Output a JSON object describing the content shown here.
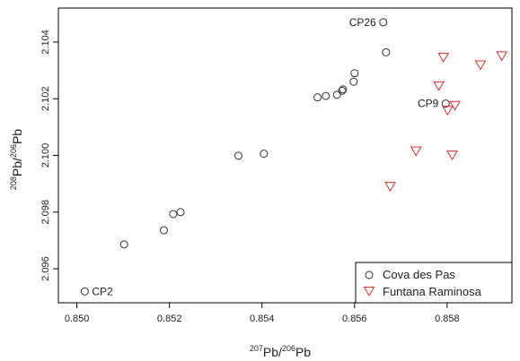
{
  "chart_data": {
    "type": "scatter",
    "xlabel": {
      "sup1": "207",
      "base1": "Pb/",
      "sup2": "206",
      "base2": "Pb"
    },
    "ylabel": {
      "sup1": "208",
      "base1": "Pb/",
      "sup2": "206",
      "base2": "Pb"
    },
    "xlim": [
      0.8496,
      0.8594
    ],
    "ylim": [
      2.0948,
      2.1052
    ],
    "xticks": [
      0.85,
      0.852,
      0.854,
      0.856,
      0.858
    ],
    "xtick_labels": [
      "0.850",
      "0.852",
      "0.854",
      "0.856",
      "0.858"
    ],
    "yticks": [
      2.096,
      2.098,
      2.1,
      2.102,
      2.104
    ],
    "ytick_labels": [
      "2.096",
      "2.098",
      "2.100",
      "2.102",
      "2.104"
    ],
    "grid": false,
    "legend_position": "bottom-right",
    "series": [
      {
        "name": "Cova des Pas",
        "marker": "circle",
        "color": "#333333",
        "points": [
          [
            0.85017,
            2.0952
          ],
          [
            0.85102,
            2.09686
          ],
          [
            0.85188,
            2.09736
          ],
          [
            0.85208,
            2.09793
          ],
          [
            0.85224,
            2.098
          ],
          [
            0.85349,
            2.09999
          ],
          [
            0.85404,
            2.10006
          ],
          [
            0.8552,
            2.10205
          ],
          [
            0.85538,
            2.1021
          ],
          [
            0.85562,
            2.10214
          ],
          [
            0.85573,
            2.10228
          ],
          [
            0.85575,
            2.10233
          ],
          [
            0.85598,
            2.1026
          ],
          [
            0.856,
            2.1029
          ],
          [
            0.85662,
            2.1047
          ],
          [
            0.85668,
            2.10364
          ],
          [
            0.85797,
            2.10183
          ]
        ]
      },
      {
        "name": "Funtana Raminosa",
        "marker": "triangle-down",
        "color": "#e0302a",
        "points": [
          [
            0.85677,
            2.09892
          ],
          [
            0.85733,
            2.10017
          ],
          [
            0.85782,
            2.10247
          ],
          [
            0.85792,
            2.10348
          ],
          [
            0.85801,
            2.10161
          ],
          [
            0.85811,
            2.10003
          ],
          [
            0.85817,
            2.10178
          ],
          [
            0.85872,
            2.10321
          ],
          [
            0.85918,
            2.10353
          ]
        ]
      }
    ],
    "annotations": [
      {
        "text": "CP26",
        "x": 0.85662,
        "y": 2.1047
      },
      {
        "text": "CP9",
        "x": 0.85797,
        "y": 2.10183
      },
      {
        "text": "CP2",
        "x": 0.85017,
        "y": 2.0952
      }
    ]
  }
}
